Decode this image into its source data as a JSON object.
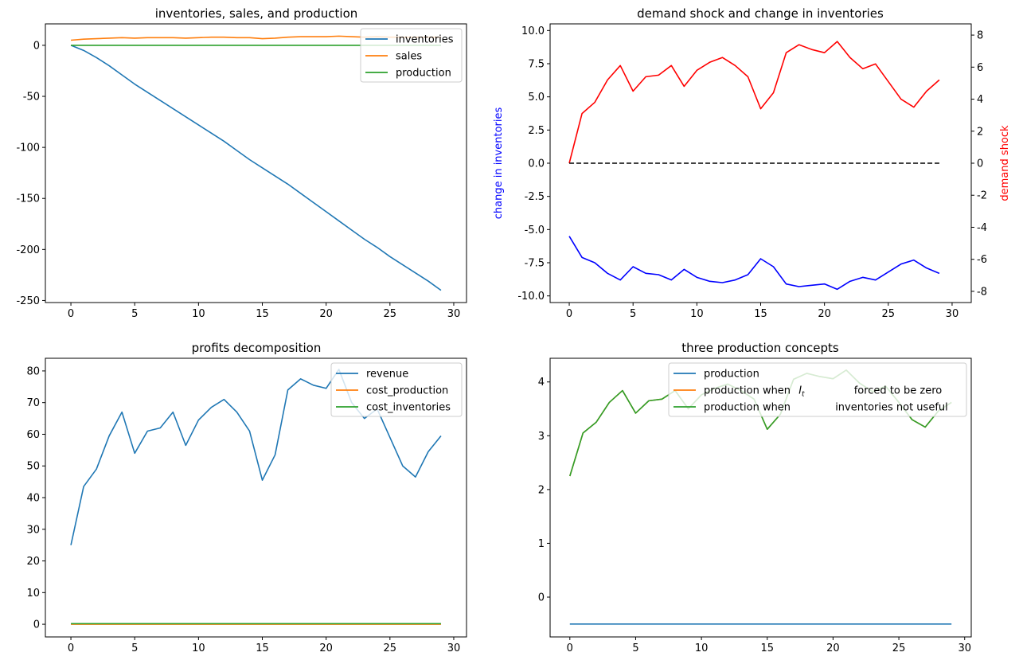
{
  "chart_data": [
    {
      "type": "line",
      "title": "inventories, sales, and production",
      "xlabel": "",
      "ylabel": "",
      "xlim": [
        -2,
        31
      ],
      "ylim": [
        -252,
        21
      ],
      "xticks": [
        0,
        5,
        10,
        15,
        20,
        25,
        30
      ],
      "yticks": [
        0,
        -50,
        -100,
        -150,
        -200,
        -250
      ],
      "legend": "top-right",
      "x": [
        0,
        1,
        2,
        3,
        4,
        5,
        6,
        7,
        8,
        9,
        10,
        11,
        12,
        13,
        14,
        15,
        16,
        17,
        18,
        19,
        20,
        21,
        22,
        23,
        24,
        25,
        26,
        27,
        28,
        29
      ],
      "series": [
        {
          "name": "inventories",
          "color": "#1f77b4",
          "values": [
            0,
            -5,
            -12,
            -20,
            -29,
            -38,
            -46,
            -54,
            -62,
            -70,
            -78,
            -86,
            -94,
            -103,
            -112,
            -120,
            -128,
            -136,
            -145,
            -154,
            -163,
            -172,
            -181,
            -190,
            -198,
            -207,
            -215,
            -223,
            -231,
            -240
          ]
        },
        {
          "name": "sales",
          "color": "#ff7f0e",
          "values": [
            5,
            6,
            6.5,
            7,
            7.5,
            7,
            7.5,
            7.5,
            7.5,
            7,
            7.5,
            8,
            8,
            7.5,
            7.5,
            6.5,
            7,
            8,
            8.5,
            8.5,
            8.5,
            9,
            8.5,
            8,
            8.5,
            8,
            8,
            8,
            8,
            8
          ]
        },
        {
          "name": "production",
          "color": "#2ca02c",
          "values": [
            0,
            0,
            0,
            0,
            0,
            0,
            0,
            0,
            0,
            0,
            0,
            0,
            0,
            0,
            0,
            0,
            0,
            0,
            0,
            0,
            0,
            0,
            0,
            0,
            0,
            0,
            0,
            0,
            0,
            0
          ]
        }
      ]
    },
    {
      "type": "line",
      "title": "demand shock and change in inventories",
      "ylabel": "change in inventories",
      "ylabel_color": "#0000ff",
      "ylabel_right": "demand shock",
      "ylabel_right_color": "#ff0000",
      "xlim": [
        -1.5,
        31.5
      ],
      "ylim": [
        -10.5,
        10.5
      ],
      "ylim_right": [
        -8.7,
        8.7
      ],
      "xticks": [
        0,
        5,
        10,
        15,
        20,
        25,
        30
      ],
      "yticks": [
        "10.0",
        "7.5",
        "5.0",
        "2.5",
        "0.0",
        "-2.5",
        "-5.0",
        "-7.5",
        "-10.0"
      ],
      "yticks_right": [
        8,
        6,
        4,
        2,
        0,
        -2,
        -4,
        -6,
        -8
      ],
      "x": [
        0,
        1,
        2,
        3,
        4,
        5,
        6,
        7,
        8,
        9,
        10,
        11,
        12,
        13,
        14,
        15,
        16,
        17,
        18,
        19,
        20,
        21,
        22,
        23,
        24,
        25,
        26,
        27,
        28,
        29
      ],
      "series": [
        {
          "axis": "left",
          "color": "#0000ff",
          "values": [
            -5.5,
            -7.1,
            -7.5,
            -8.3,
            -8.8,
            -7.8,
            -8.3,
            -8.4,
            -8.8,
            -8.0,
            -8.6,
            -8.9,
            -9.0,
            -8.8,
            -8.4,
            -7.2,
            -7.8,
            -9.1,
            -9.3,
            -9.2,
            -9.1,
            -9.5,
            -8.9,
            -8.6,
            -8.8,
            -8.2,
            -7.6,
            -7.3,
            -7.9,
            -8.3
          ]
        },
        {
          "axis": "right",
          "color": "#ff0000",
          "values": [
            0,
            3.1,
            3.8,
            5.2,
            6.1,
            4.5,
            5.4,
            5.5,
            6.1,
            4.8,
            5.8,
            6.3,
            6.6,
            6.1,
            5.4,
            3.4,
            4.4,
            6.9,
            7.4,
            7.1,
            6.9,
            7.6,
            6.6,
            5.9,
            6.2,
            5.1,
            4.0,
            3.5,
            4.5,
            5.2
          ]
        },
        {
          "axis": "left",
          "color": "#000000",
          "style": "dashed",
          "x": [
            0,
            29
          ],
          "values": [
            0,
            0
          ]
        }
      ]
    },
    {
      "type": "line",
      "title": "profits decomposition",
      "xlim": [
        -2,
        31
      ],
      "ylim": [
        -4,
        84
      ],
      "xticks": [
        0,
        5,
        10,
        15,
        20,
        25,
        30
      ],
      "yticks": [
        0,
        10,
        20,
        30,
        40,
        50,
        60,
        70,
        80
      ],
      "legend": "top-right",
      "x": [
        0,
        1,
        2,
        3,
        4,
        5,
        6,
        7,
        8,
        9,
        10,
        11,
        12,
        13,
        14,
        15,
        16,
        17,
        18,
        19,
        20,
        21,
        22,
        23,
        24,
        25,
        26,
        27,
        28,
        29
      ],
      "series": [
        {
          "name": "revenue",
          "color": "#1f77b4",
          "values": [
            25,
            43.5,
            49,
            59.5,
            67,
            54,
            61,
            62,
            67,
            56.5,
            64.5,
            68.5,
            71,
            67,
            61,
            45.5,
            53.5,
            74,
            77.5,
            75.5,
            74.5,
            80.5,
            70,
            65,
            68,
            59,
            50,
            46.5,
            54.5,
            59.5
          ]
        },
        {
          "name": "cost_production",
          "color": "#ff7f0e",
          "values": [
            0,
            0,
            0,
            0,
            0,
            0,
            0,
            0,
            0,
            0,
            0,
            0,
            0,
            0,
            0,
            0,
            0,
            0,
            0,
            0,
            0,
            0,
            0,
            0,
            0,
            0,
            0,
            0,
            0,
            0
          ]
        },
        {
          "name": "cost_inventories",
          "color": "#2ca02c",
          "values": [
            0.2,
            0.2,
            0.2,
            0.2,
            0.2,
            0.2,
            0.2,
            0.2,
            0.2,
            0.2,
            0.2,
            0.2,
            0.2,
            0.2,
            0.2,
            0.2,
            0.2,
            0.2,
            0.2,
            0.2,
            0.2,
            0.2,
            0.2,
            0.2,
            0.2,
            0.2,
            0.2,
            0.2,
            0.2,
            0.2
          ]
        }
      ]
    },
    {
      "type": "line",
      "title": "three production concepts",
      "xlim": [
        -1.5,
        30.5
      ],
      "ylim": [
        -0.74,
        4.44
      ],
      "xticks": [
        0,
        5,
        10,
        15,
        20,
        25,
        30
      ],
      "yticks": [
        0,
        1,
        2,
        3,
        4
      ],
      "legend": "top-right",
      "x": [
        0,
        1,
        2,
        3,
        4,
        5,
        6,
        7,
        8,
        9,
        10,
        11,
        12,
        13,
        14,
        15,
        16,
        17,
        18,
        19,
        20,
        21,
        22,
        23,
        24,
        25,
        26,
        27,
        28,
        29
      ],
      "series": [
        {
          "name": "production",
          "color": "#1f77b4",
          "values": [
            -0.5,
            -0.5,
            -0.5,
            -0.5,
            -0.5,
            -0.5,
            -0.5,
            -0.5,
            -0.5,
            -0.5,
            -0.5,
            -0.5,
            -0.5,
            -0.5,
            -0.5,
            -0.5,
            -0.5,
            -0.5,
            -0.5,
            -0.5,
            -0.5,
            -0.5,
            -0.5,
            -0.5,
            -0.5,
            -0.5,
            -0.5,
            -0.5,
            -0.5,
            -0.5
          ]
        },
        {
          "name_parts": [
            "production when ",
            "I",
            "t",
            " forced to be zero"
          ],
          "color": "#ff7f0e",
          "values": [
            2.25,
            3.05,
            3.25,
            3.62,
            3.84,
            3.42,
            3.65,
            3.68,
            3.84,
            3.5,
            3.76,
            3.88,
            3.96,
            3.84,
            3.68,
            3.12,
            3.4,
            4.05,
            4.16,
            4.1,
            4.06,
            4.22,
            3.98,
            3.82,
            3.92,
            3.62,
            3.3,
            3.16,
            3.46,
            3.62
          ]
        },
        {
          "name_parts": [
            "production when ",
            "inventories not useful"
          ],
          "color": "#2ca02c",
          "values": [
            2.25,
            3.05,
            3.25,
            3.62,
            3.84,
            3.42,
            3.65,
            3.68,
            3.84,
            3.5,
            3.76,
            3.88,
            3.96,
            3.84,
            3.68,
            3.12,
            3.4,
            4.05,
            4.16,
            4.1,
            4.06,
            4.22,
            3.98,
            3.82,
            3.92,
            3.62,
            3.3,
            3.16,
            3.46,
            3.62
          ]
        }
      ]
    }
  ]
}
